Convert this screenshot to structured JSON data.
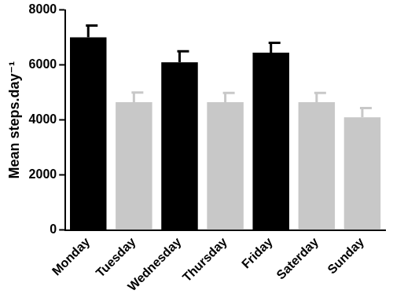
{
  "chart_data": {
    "type": "bar",
    "categories": [
      "Monday",
      "Tuesday",
      "Wednesday",
      "Thursday",
      "Friday",
      "Saterday",
      "Sunday"
    ],
    "values": [
      7000,
      4650,
      6100,
      4650,
      6450,
      4650,
      4100
    ],
    "errors": [
      430,
      350,
      400,
      330,
      350,
      330,
      330
    ],
    "colors": [
      "#000000",
      "#c8c8c8",
      "#000000",
      "#c8c8c8",
      "#000000",
      "#c8c8c8",
      "#c8c8c8"
    ],
    "y_label": "Mean steps.day⁻¹",
    "ylim": [
      0,
      8000
    ],
    "yticks": [
      0,
      2000,
      4000,
      6000,
      8000
    ],
    "grid": false
  }
}
